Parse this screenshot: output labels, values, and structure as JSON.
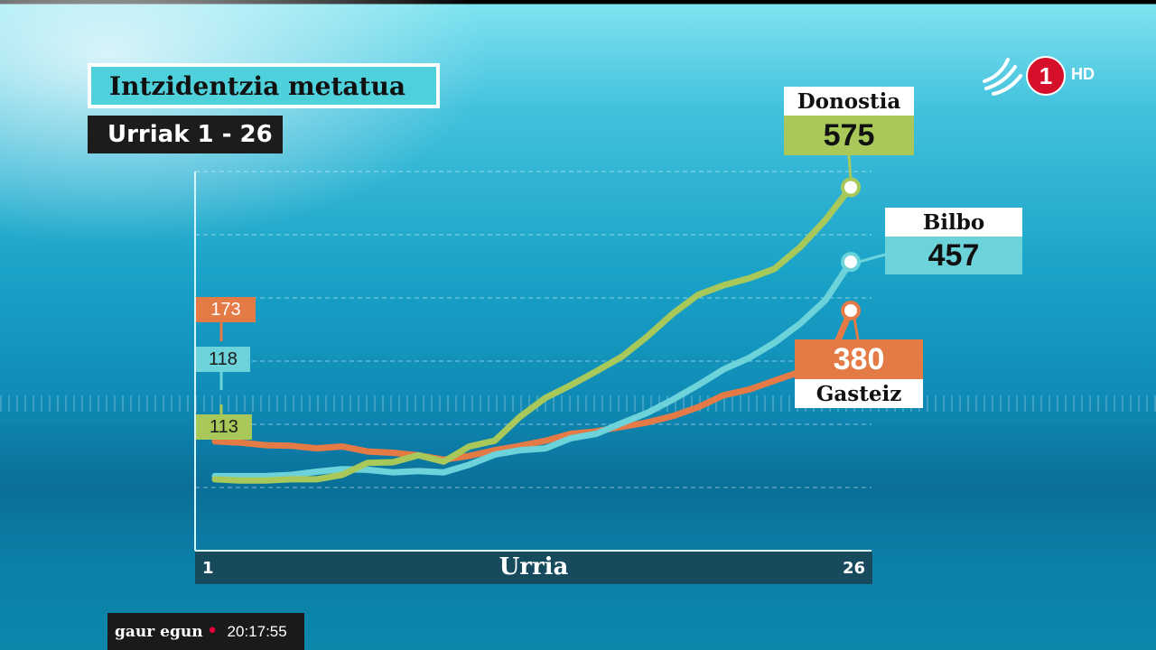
{
  "title": "Intzidentzia metatua",
  "subtitle": "Urriak 1 - 26",
  "channel": {
    "logo": "1",
    "hd": "HD"
  },
  "footer": {
    "brand": "gaur egun",
    "time": "20:17:55"
  },
  "colors": {
    "donostia": "#a8c95a",
    "bilbo": "#6dd3da",
    "gasteiz": "#e47a45"
  },
  "chart_data": {
    "type": "line",
    "xlabel": "Urria",
    "x": [
      1,
      2,
      3,
      4,
      5,
      6,
      7,
      8,
      9,
      10,
      11,
      12,
      13,
      14,
      15,
      16,
      17,
      18,
      19,
      20,
      21,
      22,
      23,
      24,
      25,
      26
    ],
    "x_tick_labels": [
      "1",
      "26"
    ],
    "ylim": [
      0,
      600
    ],
    "grid": true,
    "series": [
      {
        "name": "Donostia",
        "start_label": "113",
        "end_label": "575",
        "values": [
          113,
          111,
          111,
          113,
          113,
          120,
          139,
          140,
          151,
          141,
          165,
          174,
          212,
          242,
          262,
          284,
          307,
          339,
          375,
          405,
          420,
          431,
          446,
          480,
          523,
          575
        ]
      },
      {
        "name": "Bilbo",
        "start_label": "118",
        "end_label": "457",
        "values": [
          118,
          118,
          118,
          120,
          125,
          129,
          128,
          124,
          126,
          124,
          136,
          152,
          159,
          162,
          178,
          185,
          202,
          218,
          239,
          262,
          287,
          305,
          329,
          359,
          396,
          457
        ]
      },
      {
        "name": "Gasteiz",
        "start_label": "173",
        "end_label": "380",
        "values": [
          173,
          171,
          167,
          166,
          162,
          165,
          157,
          155,
          151,
          144,
          150,
          159,
          166,
          174,
          185,
          189,
          196,
          203,
          213,
          227,
          246,
          255,
          269,
          283,
          286,
          380
        ]
      }
    ]
  }
}
